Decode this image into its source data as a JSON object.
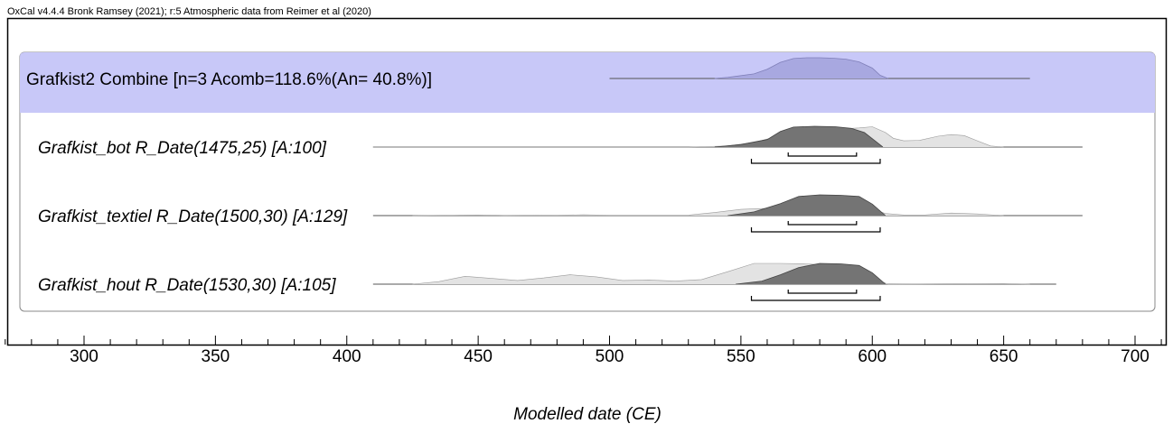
{
  "header": {
    "text": "OxCal v4.4.4 Bronk Ramsey (2021); r:5 Atmospheric data from Reimer et al (2020)"
  },
  "colors": {
    "combine_band": "#c8c8f8",
    "combine_fill": "#a8a8e0",
    "prior_fill": "#e3e3e3",
    "posterior_fill": "#747474",
    "stroke": "#555555"
  },
  "chart_data": {
    "type": "area",
    "title": "",
    "xlabel": "Modelled date (CE)",
    "xlim": [
      270,
      710
    ],
    "xticks": [
      300,
      350,
      400,
      450,
      500,
      550,
      600,
      650,
      700
    ],
    "minor_tick_step": 10,
    "grid": false,
    "combine": {
      "label": "Grafkist2 Combine [n=3 Acomb=118.6%(An= 40.8%)]",
      "line_range": [
        500,
        660
      ],
      "distribution": [
        [
          540,
          0
        ],
        [
          545,
          0.05
        ],
        [
          555,
          0.22
        ],
        [
          560,
          0.45
        ],
        [
          565,
          0.78
        ],
        [
          570,
          0.96
        ],
        [
          575,
          1
        ],
        [
          580,
          1
        ],
        [
          585,
          0.98
        ],
        [
          590,
          0.93
        ],
        [
          595,
          0.8
        ],
        [
          600,
          0.5
        ],
        [
          603,
          0.15
        ],
        [
          606,
          0
        ]
      ]
    },
    "series": [
      {
        "label": "Grafkist_bot R_Date(1475,25) [A:100]",
        "line_range": [
          410,
          680
        ],
        "prior": [
          [
            410,
            0
          ],
          [
            530,
            0
          ],
          [
            545,
            0.05
          ],
          [
            555,
            0.22
          ],
          [
            565,
            0.55
          ],
          [
            575,
            0.78
          ],
          [
            585,
            0.85
          ],
          [
            595,
            0.92
          ],
          [
            600,
            0.98
          ],
          [
            605,
            0.7
          ],
          [
            608,
            0.42
          ],
          [
            612,
            0.3
          ],
          [
            618,
            0.32
          ],
          [
            625,
            0.52
          ],
          [
            630,
            0.6
          ],
          [
            635,
            0.55
          ],
          [
            640,
            0.3
          ],
          [
            645,
            0.05
          ],
          [
            650,
            0
          ]
        ],
        "posterior": [
          [
            540,
            0
          ],
          [
            550,
            0.12
          ],
          [
            560,
            0.36
          ],
          [
            565,
            0.75
          ],
          [
            570,
            0.96
          ],
          [
            578,
            1
          ],
          [
            586,
            0.98
          ],
          [
            592,
            0.9
          ],
          [
            597,
            0.7
          ],
          [
            601,
            0.3
          ],
          [
            604,
            0
          ]
        ],
        "range_68": [
          568,
          594
        ],
        "range_95": [
          554,
          603
        ]
      },
      {
        "label": "Grafkist_textiel R_Date(1500,30) [A:129]",
        "line_range": [
          410,
          680
        ],
        "prior": [
          [
            425,
            0
          ],
          [
            440,
            0.02
          ],
          [
            450,
            0.03
          ],
          [
            460,
            0.01
          ],
          [
            480,
            0.02
          ],
          [
            490,
            0.04
          ],
          [
            500,
            0.02
          ],
          [
            530,
            0.02
          ],
          [
            540,
            0.15
          ],
          [
            550,
            0.3
          ],
          [
            560,
            0.35
          ],
          [
            575,
            0.38
          ],
          [
            590,
            0.37
          ],
          [
            600,
            0.3
          ],
          [
            605,
            0.1
          ],
          [
            612,
            0.03
          ],
          [
            620,
            0.03
          ],
          [
            630,
            0.12
          ],
          [
            640,
            0.08
          ],
          [
            650,
            0
          ]
        ],
        "posterior": [
          [
            545,
            0
          ],
          [
            555,
            0.18
          ],
          [
            565,
            0.58
          ],
          [
            572,
            0.92
          ],
          [
            580,
            1
          ],
          [
            588,
            0.98
          ],
          [
            595,
            0.92
          ],
          [
            600,
            0.55
          ],
          [
            605,
            0
          ]
        ],
        "range_68": [
          568,
          594
        ],
        "range_95": [
          554,
          603
        ]
      },
      {
        "label": "Grafkist_hout R_Date(1530,30) [A:105]",
        "line_range": [
          410,
          670
        ],
        "prior": [
          [
            425,
            0
          ],
          [
            435,
            0.12
          ],
          [
            445,
            0.38
          ],
          [
            455,
            0.28
          ],
          [
            465,
            0.18
          ],
          [
            475,
            0.3
          ],
          [
            485,
            0.45
          ],
          [
            495,
            0.35
          ],
          [
            505,
            0.18
          ],
          [
            515,
            0.2
          ],
          [
            525,
            0.15
          ],
          [
            535,
            0.22
          ],
          [
            545,
            0.6
          ],
          [
            555,
            1
          ],
          [
            565,
            1
          ],
          [
            575,
            0.98
          ],
          [
            585,
            0.9
          ],
          [
            592,
            0.78
          ],
          [
            598,
            0.5
          ],
          [
            603,
            0.15
          ],
          [
            606,
            0
          ],
          [
            650,
            0.03
          ],
          [
            660,
            0
          ]
        ],
        "posterior": [
          [
            548,
            0
          ],
          [
            558,
            0.15
          ],
          [
            565,
            0.45
          ],
          [
            572,
            0.8
          ],
          [
            580,
            1
          ],
          [
            588,
            0.98
          ],
          [
            595,
            0.9
          ],
          [
            600,
            0.55
          ],
          [
            605,
            0
          ]
        ],
        "range_68": [
          568,
          594
        ],
        "range_95": [
          554,
          603
        ]
      }
    ]
  }
}
